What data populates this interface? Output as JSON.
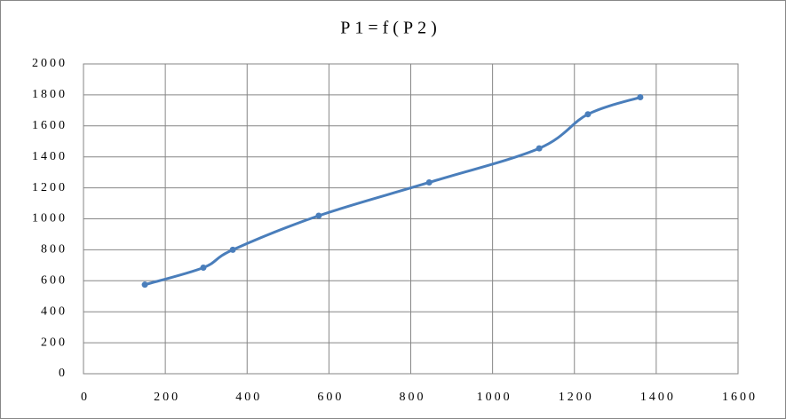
{
  "chart_data": {
    "type": "line",
    "title": "P1=f(P2)",
    "x": [
      150,
      293,
      365,
      575,
      845,
      1114,
      1233,
      1361
    ],
    "values": [
      575,
      685,
      800,
      1020,
      1235,
      1455,
      1675,
      1785
    ],
    "color": "#4a7ebb",
    "xlim": [
      0,
      1600
    ],
    "xticks": [
      0,
      200,
      400,
      600,
      800,
      1000,
      1200,
      1400,
      1600
    ],
    "ylim": [
      0,
      2000
    ],
    "yticks": [
      0,
      200,
      400,
      600,
      800,
      1000,
      1200,
      1400,
      1600,
      1800,
      2000
    ],
    "grid": true,
    "smooth": true
  }
}
